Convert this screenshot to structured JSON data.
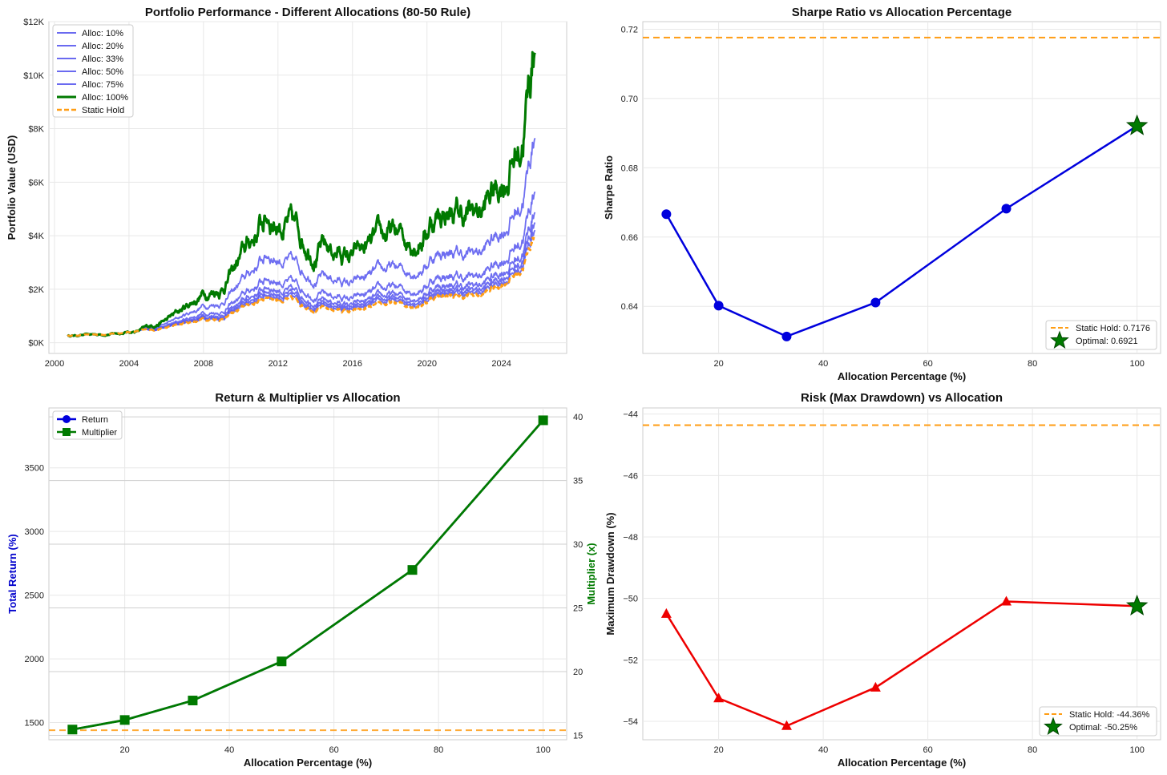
{
  "colors": {
    "blue": "#5555ee",
    "blue_dark": "#0000dd",
    "green": "#007a00",
    "orange": "#ff9d14",
    "red": "#ee0000",
    "grid": "#e8e8e8",
    "frame": "#cccccc"
  },
  "chart_data": [
    {
      "id": "performance",
      "type": "line",
      "title": "Portfolio Performance - Different Allocations (80-50 Rule)",
      "xlabel": "",
      "ylabel": "Portfolio Value (USD)",
      "xlim": [
        1999.7,
        2027.5
      ],
      "ylim": [
        -400,
        12000
      ],
      "xticks": [
        2000,
        2004,
        2008,
        2012,
        2016,
        2020,
        2024
      ],
      "xtick_labels": [
        "2000",
        "2004",
        "2008",
        "2012",
        "2016",
        "2020",
        "2024"
      ],
      "yticks": [
        0,
        2000,
        4000,
        6000,
        8000,
        10000,
        12000
      ],
      "ytick_labels": [
        "$0K",
        "$2K",
        "$4K",
        "$6K",
        "$8K",
        "$10K",
        "$12K"
      ],
      "legend": "top-left",
      "base_anchors": {
        "x": [
          2000.7,
          2003,
          2004,
          2006,
          2008,
          2009,
          2011.5,
          2012.5,
          2014,
          2015,
          2016,
          2017,
          2018,
          2019,
          2020,
          2020.2,
          2021,
          2022,
          2023,
          2024,
          2025,
          2025.4,
          2025.8
        ],
        "y": [
          260,
          330,
          400,
          550,
          900,
          900,
          1750,
          1600,
          1300,
          1250,
          1150,
          1300,
          1450,
          1400,
          1550,
          1700,
          1800,
          1700,
          1800,
          2200,
          2700,
          3300,
          4200
        ]
      },
      "series": [
        {
          "name": "Alloc: 10%",
          "final": 4400
        },
        {
          "name": "Alloc: 20%",
          "final": 4700
        },
        {
          "name": "Alloc: 33%",
          "final": 5100
        },
        {
          "name": "Alloc: 50%",
          "final": 5900
        },
        {
          "name": "Alloc: 75%",
          "final": 8000
        },
        {
          "name": "Alloc: 100%",
          "final": 11550
        },
        {
          "name": "Static Hold",
          "final": 4200
        }
      ]
    },
    {
      "id": "sharpe",
      "type": "line",
      "title": "Sharpe Ratio vs Allocation Percentage",
      "xlabel": "Allocation Percentage (%)",
      "ylabel": "Sharpe Ratio",
      "xlim": [
        5.5,
        104.5
      ],
      "ylim": [
        0.6264,
        0.7222
      ],
      "xticks": [
        20,
        40,
        60,
        80,
        100
      ],
      "yticks": [
        0.64,
        0.66,
        0.68,
        0.7,
        0.72
      ],
      "ytick_labels": [
        "0.64",
        "0.66",
        "0.68",
        "0.70",
        "0.72"
      ],
      "x": [
        10,
        20,
        33,
        50,
        75,
        100
      ],
      "values": [
        0.6666,
        0.6402,
        0.6313,
        0.6411,
        0.6682,
        0.6921
      ],
      "static_hold": 0.7176,
      "optimal": {
        "x": 100,
        "y": 0.6921
      },
      "legend": "bottom-right",
      "legend_labels": [
        "Static Hold: 0.7176",
        "Optimal: 0.6921"
      ]
    },
    {
      "id": "return_multiplier",
      "type": "line",
      "title": "Return & Multiplier vs Allocation",
      "xlabel": "Allocation Percentage (%)",
      "ylabel": "Total Return (%)",
      "ylabel_right": "Multiplier (x)",
      "xlim": [
        5.5,
        104.5
      ],
      "ylim": [
        1365,
        3970
      ],
      "ylim_right": [
        14.65,
        40.7
      ],
      "xticks": [
        20,
        40,
        60,
        80,
        100
      ],
      "yticks": [
        1500,
        2000,
        2500,
        3000,
        3500
      ],
      "yticks_right": [
        15,
        20,
        25,
        30,
        35,
        40
      ],
      "x": [
        10,
        20,
        33,
        50,
        75,
        100
      ],
      "series": [
        {
          "name": "Return",
          "values": [
            1445,
            1520,
            1673,
            1980,
            2698,
            3873
          ]
        },
        {
          "name": "Multiplier",
          "values": [
            15.45,
            16.2,
            17.73,
            20.8,
            27.98,
            39.73
          ]
        }
      ],
      "static_hold": 1440,
      "legend": "top-left"
    },
    {
      "id": "drawdown",
      "type": "line",
      "title": "Risk (Max Drawdown) vs Allocation",
      "xlabel": "Allocation Percentage (%)",
      "ylabel": "Maximum Drawdown (%)",
      "xlim": [
        5.5,
        104.5
      ],
      "ylim": [
        -54.6,
        -43.8
      ],
      "xticks": [
        20,
        40,
        60,
        80,
        100
      ],
      "yticks": [
        -54,
        -52,
        -50,
        -48,
        -46,
        -44
      ],
      "ytick_labels": [
        "−54",
        "−52",
        "−50",
        "−48",
        "−46",
        "−44"
      ],
      "x": [
        10,
        20,
        33,
        50,
        75,
        100
      ],
      "values": [
        -50.5,
        -53.25,
        -54.15,
        -52.9,
        -50.1,
        -50.25
      ],
      "static_hold": -44.36,
      "optimal": {
        "x": 100,
        "y": -50.25
      },
      "legend": "bottom-right",
      "legend_labels": [
        "Static Hold: -44.36%",
        "Optimal: -50.25%"
      ]
    }
  ]
}
